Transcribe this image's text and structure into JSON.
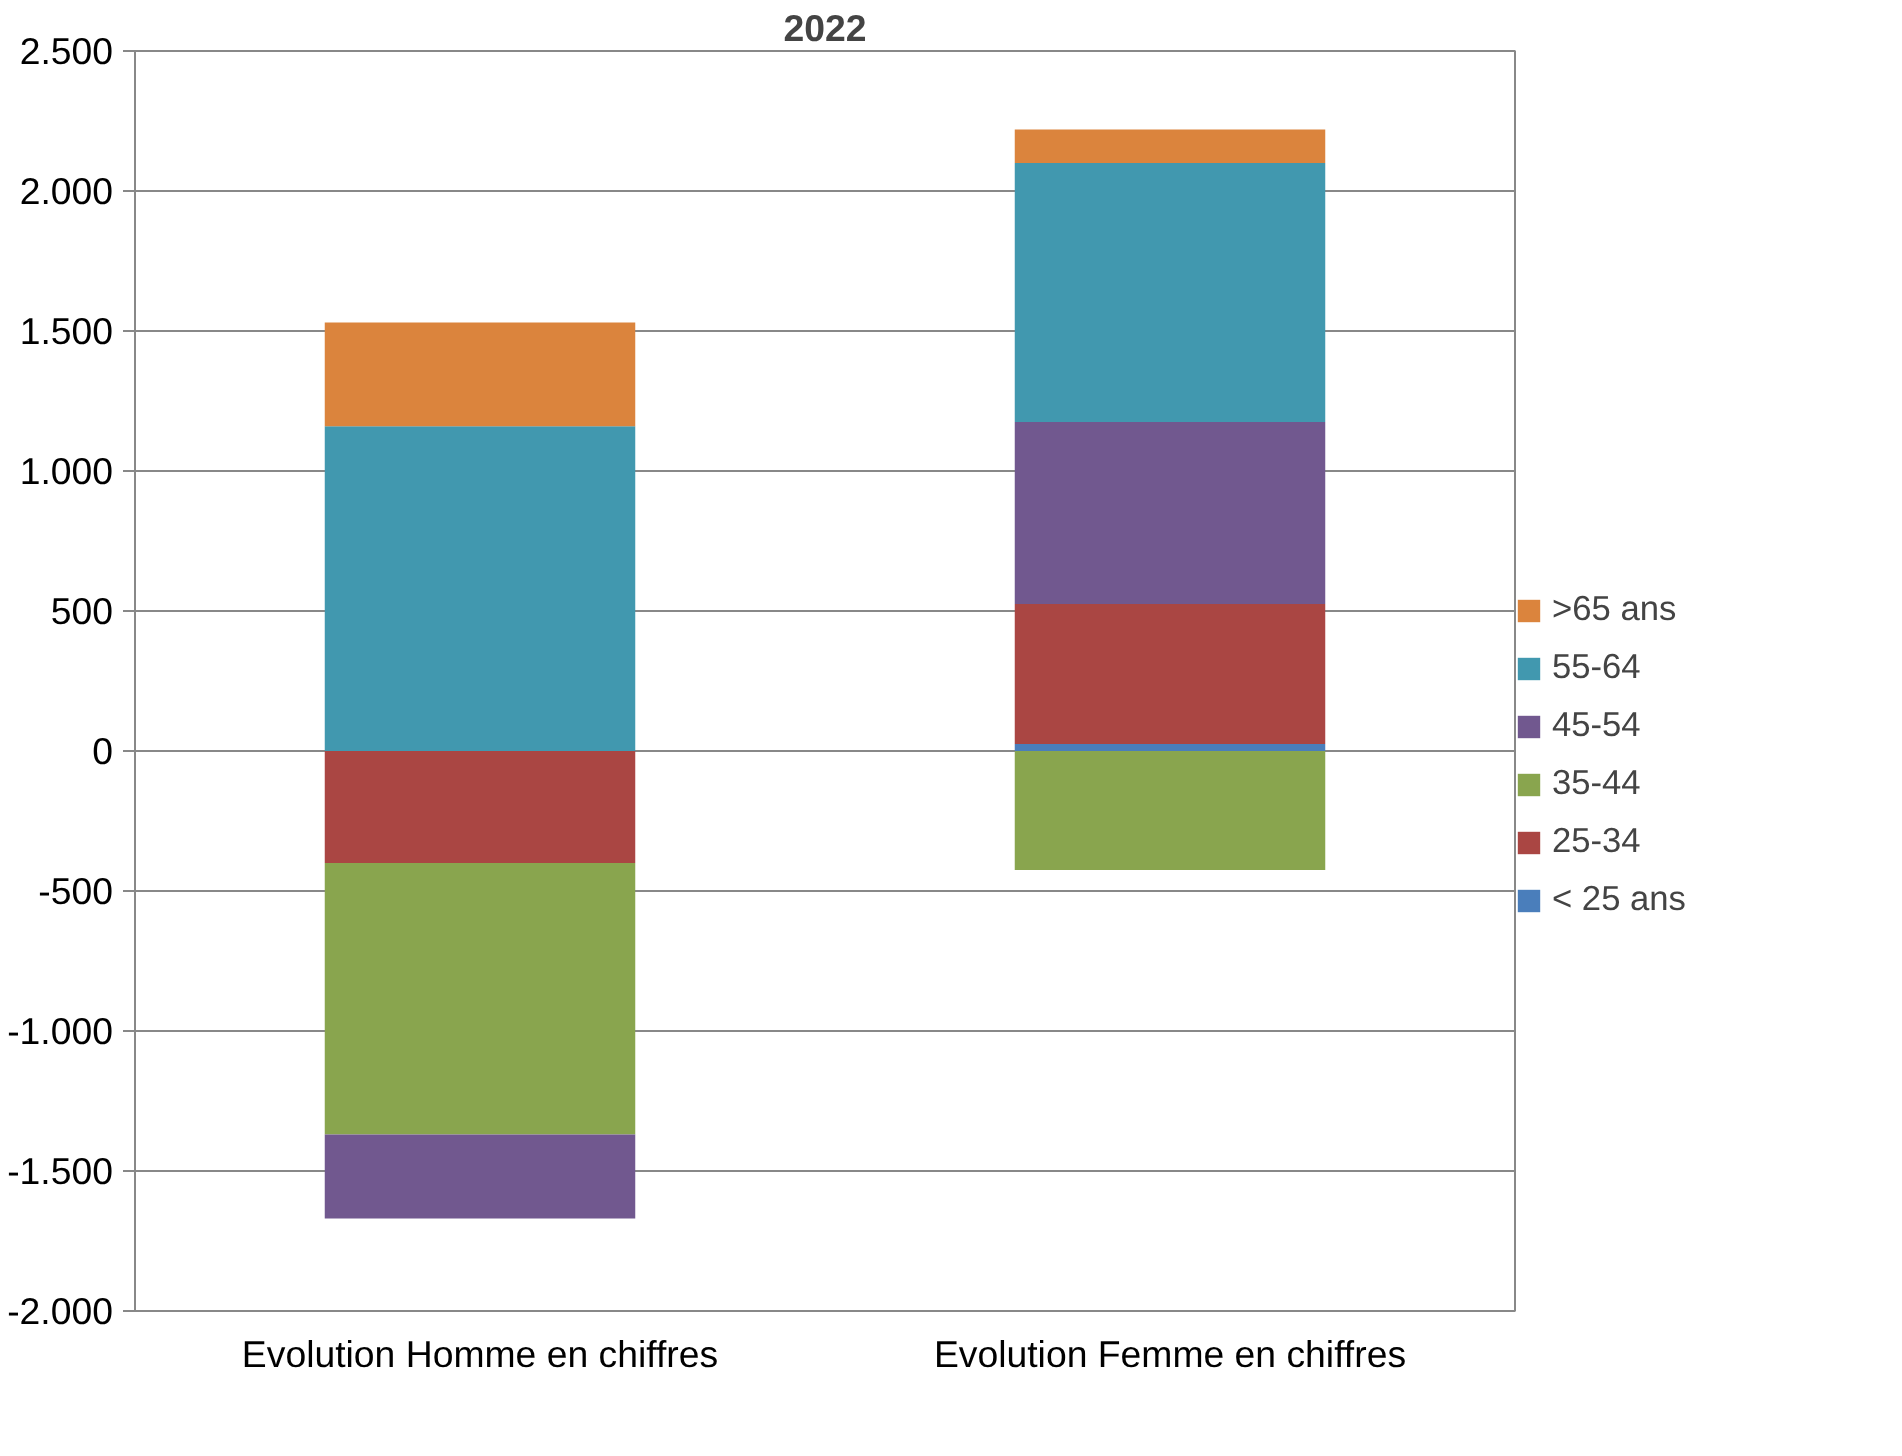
{
  "chart_data": {
    "type": "bar",
    "title": "2022",
    "stacked": true,
    "categories": [
      "Evolution Homme en chiffres",
      "Evolution Femme en chiffres"
    ],
    "series": [
      {
        "name": "< 25 ans",
        "color": "#4a7ebb",
        "values": [
          0,
          25
        ]
      },
      {
        "name": "25-34",
        "color": "#aa4643",
        "values": [
          -400,
          500
        ]
      },
      {
        "name": "35-44",
        "color": "#89a54e",
        "values": [
          -970,
          -425
        ]
      },
      {
        "name": "45-54",
        "color": "#71588f",
        "values": [
          -300,
          650
        ]
      },
      {
        "name": "55-64",
        "color": "#4198af",
        "values": [
          1160,
          925
        ]
      },
      {
        "name": ">65 ans",
        "color": "#db843d",
        "values": [
          370,
          120
        ]
      }
    ],
    "ylim": [
      -2000,
      2500
    ],
    "yticks": [
      {
        "value": -2000,
        "label": "-2.000"
      },
      {
        "value": -1500,
        "label": "-1.500"
      },
      {
        "value": -1000,
        "label": "-1.000"
      },
      {
        "value": -500,
        "label": "-500"
      },
      0,
      {
        "value": 500,
        "label": "500"
      },
      {
        "value": 1000,
        "label": "1.000"
      },
      {
        "value": 1500,
        "label": "1.500"
      },
      {
        "value": 2000,
        "label": "2.000"
      },
      {
        "value": 2500,
        "label": "2.500"
      }
    ],
    "grid": "y",
    "legend": "right"
  }
}
